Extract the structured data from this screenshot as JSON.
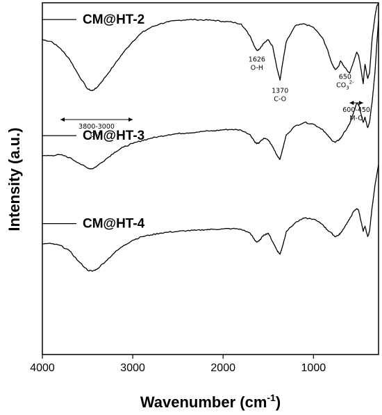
{
  "chart_data": {
    "type": "line",
    "xlabel": "Wavenumber (cm",
    "xlabel_sup": "-1",
    "xlabel_close": ")",
    "ylabel": "Intensity (a.u.)",
    "x_reversed": true,
    "xlim": [
      4000,
      280
    ],
    "ylim": [
      0,
      100
    ],
    "xticks": [
      4000,
      3000,
      2000,
      1000
    ],
    "grid": false,
    "legend_placement": "per-trace labels, left",
    "series": [
      {
        "name": "CM@HT-2",
        "x": [
          4000,
          3900,
          3800,
          3700,
          3600,
          3500,
          3450,
          3400,
          3300,
          3200,
          3100,
          3000,
          2900,
          2800,
          2700,
          2600,
          2500,
          2400,
          2300,
          2200,
          2100,
          2000,
          1900,
          1800,
          1700,
          1650,
          1626,
          1600,
          1550,
          1500,
          1450,
          1400,
          1370,
          1340,
          1300,
          1200,
          1100,
          1000,
          900,
          850,
          800,
          760,
          720,
          700,
          650,
          600,
          560,
          520,
          500,
          470,
          450,
          430,
          400,
          380,
          350,
          320,
          300,
          280
        ],
        "y": [
          89.5,
          89.0,
          87.0,
          84.0,
          79.5,
          75.5,
          75.0,
          75.8,
          79.0,
          82.5,
          86.0,
          89.0,
          91.5,
          93.0,
          94.0,
          94.6,
          95.0,
          95.2,
          95.2,
          95.1,
          95.0,
          94.7,
          94.5,
          94.0,
          90.5,
          87.5,
          86.5,
          86.8,
          88.5,
          89.5,
          87.5,
          81.0,
          78.0,
          83.0,
          89.0,
          93.5,
          94.0,
          93.0,
          90.0,
          87.0,
          83.0,
          81.0,
          82.0,
          83.5,
          81.5,
          80.0,
          83.0,
          86.0,
          85.0,
          80.5,
          77.0,
          82.5,
          78.5,
          80.0,
          90.0,
          96.0,
          99.0,
          100.0
        ]
      },
      {
        "name": "CM@HT-3",
        "x": [
          4000,
          3900,
          3800,
          3700,
          3600,
          3500,
          3450,
          3400,
          3300,
          3200,
          3100,
          3000,
          2900,
          2800,
          2700,
          2600,
          2500,
          2400,
          2300,
          2200,
          2100,
          2000,
          1900,
          1800,
          1700,
          1650,
          1626,
          1600,
          1550,
          1500,
          1450,
          1400,
          1370,
          1340,
          1300,
          1200,
          1100,
          1000,
          900,
          850,
          800,
          760,
          720,
          700,
          650,
          600,
          560,
          520,
          500,
          470,
          450,
          430,
          400,
          380,
          350,
          320,
          300,
          280
        ],
        "y": [
          56.5,
          56.6,
          56.8,
          56.0,
          54.5,
          53.0,
          52.8,
          53.5,
          55.5,
          57.5,
          59.0,
          60.0,
          60.8,
          61.5,
          62.0,
          62.5,
          62.8,
          63.0,
          63.2,
          63.5,
          63.6,
          63.9,
          64.0,
          63.8,
          62.5,
          60.5,
          60.0,
          60.2,
          61.5,
          61.0,
          59.0,
          56.5,
          55.5,
          58.5,
          62.5,
          65.0,
          66.0,
          65.5,
          64.0,
          62.5,
          61.0,
          60.3,
          61.0,
          61.5,
          63.5,
          65.5,
          68.5,
          71.5,
          71.0,
          68.0,
          66.0,
          67.5,
          64.5,
          66.0,
          72.0,
          80.0,
          88.0,
          95.0
        ]
      },
      {
        "name": "CM@HT-4",
        "x": [
          4000,
          3900,
          3800,
          3700,
          3600,
          3500,
          3450,
          3400,
          3300,
          3200,
          3100,
          3000,
          2900,
          2800,
          2700,
          2600,
          2500,
          2400,
          2300,
          2200,
          2100,
          2000,
          1900,
          1800,
          1700,
          1650,
          1626,
          1600,
          1550,
          1500,
          1450,
          1400,
          1370,
          1340,
          1300,
          1200,
          1100,
          1000,
          900,
          850,
          800,
          760,
          720,
          700,
          650,
          600,
          560,
          520,
          500,
          470,
          450,
          430,
          400,
          380,
          350,
          320,
          300,
          280
        ],
        "y": [
          31.5,
          31.5,
          31.0,
          29.5,
          26.5,
          24.0,
          23.7,
          24.2,
          26.5,
          29.0,
          31.0,
          32.5,
          33.5,
          34.0,
          34.5,
          34.8,
          35.0,
          35.2,
          35.3,
          35.5,
          35.6,
          35.7,
          35.8,
          35.6,
          34.5,
          32.5,
          32.0,
          32.3,
          34.0,
          34.5,
          32.0,
          29.5,
          28.5,
          31.0,
          35.0,
          37.5,
          38.8,
          38.5,
          37.0,
          35.5,
          34.5,
          33.5,
          34.0,
          34.5,
          36.5,
          38.5,
          40.5,
          41.5,
          41.0,
          37.5,
          35.0,
          36.5,
          33.5,
          35.0,
          42.0,
          48.0,
          51.0,
          54.0
        ]
      }
    ],
    "annotations": [
      {
        "kind": "band",
        "text1": "3800-3000",
        "text2": "O-H",
        "from": 3800,
        "to": 3000
      },
      {
        "kind": "peak",
        "text1": "1626",
        "text2": "O-H",
        "at": 1626
      },
      {
        "kind": "peak",
        "text1": "1370",
        "text2": "C-O",
        "at": 1370
      },
      {
        "kind": "peak",
        "text1": "650",
        "text2": "CO",
        "text2_sub": "3",
        "text2_sup": "2-",
        "at": 650
      },
      {
        "kind": "band",
        "text1": "600-450",
        "text2": "M-O",
        "from": 600,
        "to": 450
      }
    ]
  }
}
